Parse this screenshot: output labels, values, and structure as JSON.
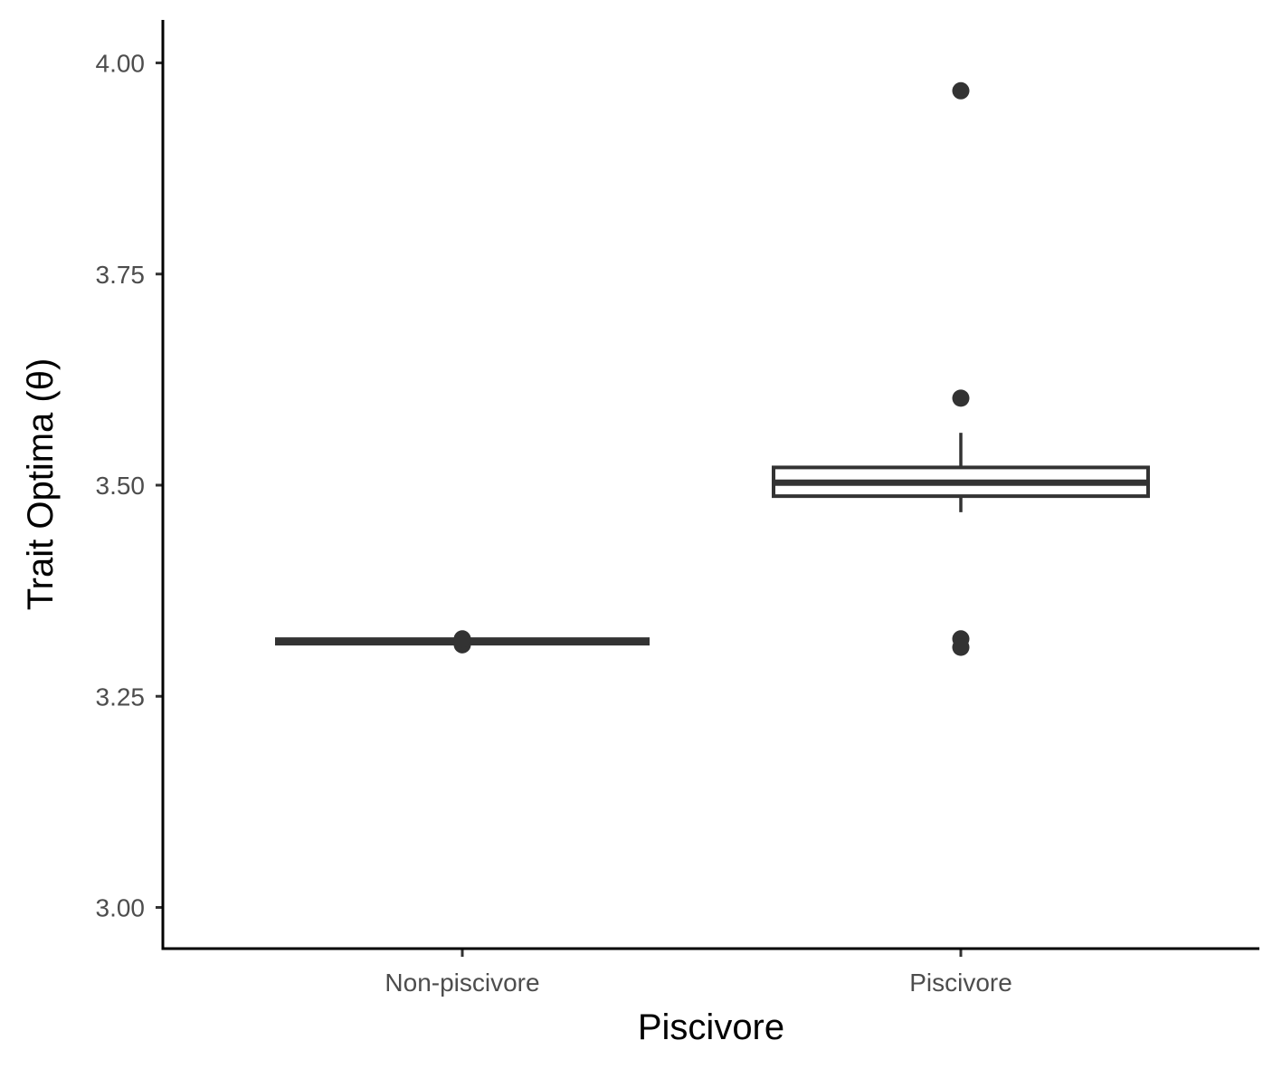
{
  "chart_data": {
    "type": "box",
    "xlabel": "Piscivore",
    "ylabel": "Trait Optima (θ)",
    "categories": [
      "Non-piscivore",
      "Piscivore"
    ],
    "ylim": [
      2.95,
      4.05
    ],
    "yticks": [
      3.0,
      3.25,
      3.5,
      3.75,
      4.0
    ],
    "ytick_labels": [
      "3.00",
      "3.25",
      "3.50",
      "3.75",
      "4.00"
    ],
    "grid": false,
    "legend": "none",
    "boxes": [
      {
        "category": "Non-piscivore",
        "whisker_low": 3.315,
        "q1": 3.315,
        "median": 3.315,
        "q3": 3.315,
        "whisker_high": 3.315,
        "outliers": [
          3.311,
          3.318
        ]
      },
      {
        "category": "Piscivore",
        "whisker_low": 3.468,
        "q1": 3.487,
        "median": 3.503,
        "q3": 3.521,
        "whisker_high": 3.562,
        "outliers": [
          3.967,
          3.603,
          3.318,
          3.308
        ]
      }
    ],
    "colors": {
      "box": "#333333",
      "axis": "#000000",
      "tick_text": "#4d4d4d"
    }
  }
}
